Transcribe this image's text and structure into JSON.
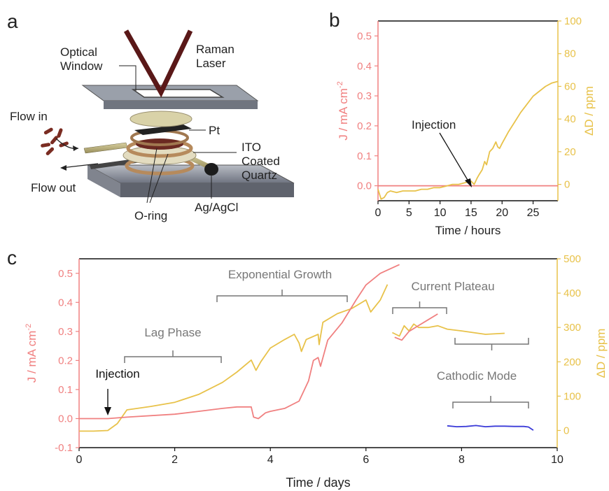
{
  "panel_labels": {
    "a": "a",
    "b": "b",
    "c": "c"
  },
  "schematic": {
    "labels": {
      "optical_window": "Optical\nWindow",
      "raman_laser": "Raman\nLaser",
      "flow_in": "Flow in",
      "flow_out": "Flow out",
      "pt": "Pt",
      "ito": "ITO\nCoated\nQuartz",
      "oring": "O-ring",
      "agagcl": "Ag/AgCl"
    }
  },
  "colors": {
    "current": "#f08080",
    "deuterium": "#e8c24a",
    "cathodic": "#3a3ad8",
    "bracket": "#777777",
    "text": "#222222"
  },
  "chart_data": [
    {
      "panel": "b",
      "type": "line",
      "xlabel": "Time / hours",
      "ylabel_left": "J / mA cm-2",
      "ylabel_right": "ΔD / ppm",
      "xlim": [
        0,
        29
      ],
      "ylim_left": [
        -0.05,
        0.55
      ],
      "ylim_right": [
        -10,
        100
      ],
      "xticks": [
        0,
        5,
        10,
        15,
        20,
        25
      ],
      "yticks_left": [
        "0.0",
        "0.1",
        "0.2",
        "0.3",
        "0.4",
        "0.5"
      ],
      "yticks_right": [
        "0",
        "20",
        "40",
        "60",
        "80",
        "100"
      ],
      "annotation": "Injection",
      "series": [
        {
          "axis": "left",
          "x": [
            0,
            29
          ],
          "y": [
            0.0,
            0.0
          ]
        },
        {
          "axis": "right",
          "x": [
            0,
            0.5,
            1,
            1.5,
            2,
            3,
            4,
            5,
            6,
            7,
            8,
            9,
            10,
            11,
            12,
            13,
            14,
            15,
            15.5,
            16,
            16.3,
            16.8,
            17.2,
            17.5,
            18,
            18.5,
            19,
            19.3,
            19.6,
            20,
            21,
            22,
            23,
            24,
            25,
            26,
            27,
            28,
            29
          ],
          "y": [
            -3,
            -9,
            -8,
            -5,
            -4,
            -5,
            -4,
            -4,
            -4,
            -3,
            -3,
            -2,
            -2,
            -1,
            0,
            0,
            1,
            2,
            0,
            4,
            6,
            9,
            14,
            12,
            20,
            22,
            26,
            23,
            22,
            25,
            32,
            38,
            44,
            49,
            54,
            57,
            60,
            62,
            63
          ]
        }
      ]
    },
    {
      "panel": "c",
      "type": "line",
      "xlabel": "Time / days",
      "ylabel_left": "J / mA cm-2",
      "ylabel_right": "ΔD / ppm",
      "xlim": [
        0,
        10
      ],
      "ylim_left": [
        -0.1,
        0.55
      ],
      "ylim_right": [
        -50,
        500
      ],
      "xticks": [
        0,
        2,
        4,
        6,
        8,
        10
      ],
      "yticks_left": [
        "-0.1",
        "0.0",
        "0.1",
        "0.2",
        "0.3",
        "0.4",
        "0.5"
      ],
      "yticks_right": [
        "0",
        "100",
        "200",
        "300",
        "400",
        "500"
      ],
      "annotations": [
        "Injection",
        "Lag Phase",
        "Exponential Growth",
        "Current Plateau",
        "Cathodic Mode"
      ],
      "series": [
        {
          "axis": "right",
          "color": "deuterium",
          "x": [
            0,
            0.3,
            0.6,
            0.8,
            0.9,
            1.0,
            1.5,
            2.0,
            2.5,
            3.0,
            3.3,
            3.6,
            3.7,
            3.8,
            4.0,
            4.3,
            4.5,
            4.6,
            4.65,
            4.75,
            5.0,
            5.02,
            5.1,
            5.4,
            5.7,
            6.0,
            6.1,
            6.3,
            6.45
          ],
          "y": [
            -2,
            -2,
            0,
            20,
            40,
            60,
            70,
            82,
            105,
            140,
            170,
            205,
            175,
            200,
            240,
            265,
            280,
            255,
            230,
            265,
            280,
            250,
            315,
            340,
            355,
            380,
            345,
            380,
            425
          ]
        },
        {
          "axis": "right",
          "color": "deuterium",
          "x": [
            6.55,
            6.7,
            6.8,
            6.9,
            7.0,
            7.1,
            7.3,
            7.5,
            7.7,
            8.0,
            8.5,
            8.9
          ],
          "y": [
            285,
            275,
            305,
            290,
            310,
            300,
            300,
            305,
            295,
            290,
            280,
            283
          ]
        },
        {
          "axis": "left",
          "color": "current",
          "x": [
            0,
            0.6,
            1.0,
            2.0,
            2.5,
            3.0,
            3.3,
            3.6,
            3.65,
            3.75,
            3.9,
            4.0,
            4.3,
            4.6,
            4.8,
            4.9,
            5.0,
            5.05,
            5.2,
            5.5,
            5.8,
            6.0,
            6.3,
            6.7
          ],
          "y": [
            0,
            0,
            0.005,
            0.015,
            0.025,
            0.035,
            0.04,
            0.04,
            0.005,
            0.0,
            0.02,
            0.025,
            0.035,
            0.06,
            0.13,
            0.2,
            0.21,
            0.18,
            0.27,
            0.33,
            0.41,
            0.46,
            0.5,
            0.53
          ]
        },
        {
          "axis": "left",
          "color": "current",
          "x": [
            6.6,
            6.75,
            6.9,
            7.1,
            7.3,
            7.5
          ],
          "y": [
            0.28,
            0.27,
            0.3,
            0.32,
            0.34,
            0.36
          ]
        },
        {
          "axis": "left",
          "color": "cathodic",
          "x": [
            7.7,
            7.9,
            8.1,
            8.3,
            8.5,
            8.7,
            8.9,
            9.1,
            9.3,
            9.4,
            9.5
          ],
          "y": [
            -0.025,
            -0.028,
            -0.027,
            -0.024,
            -0.028,
            -0.026,
            -0.026,
            -0.027,
            -0.027,
            -0.029,
            -0.04
          ]
        }
      ]
    }
  ]
}
